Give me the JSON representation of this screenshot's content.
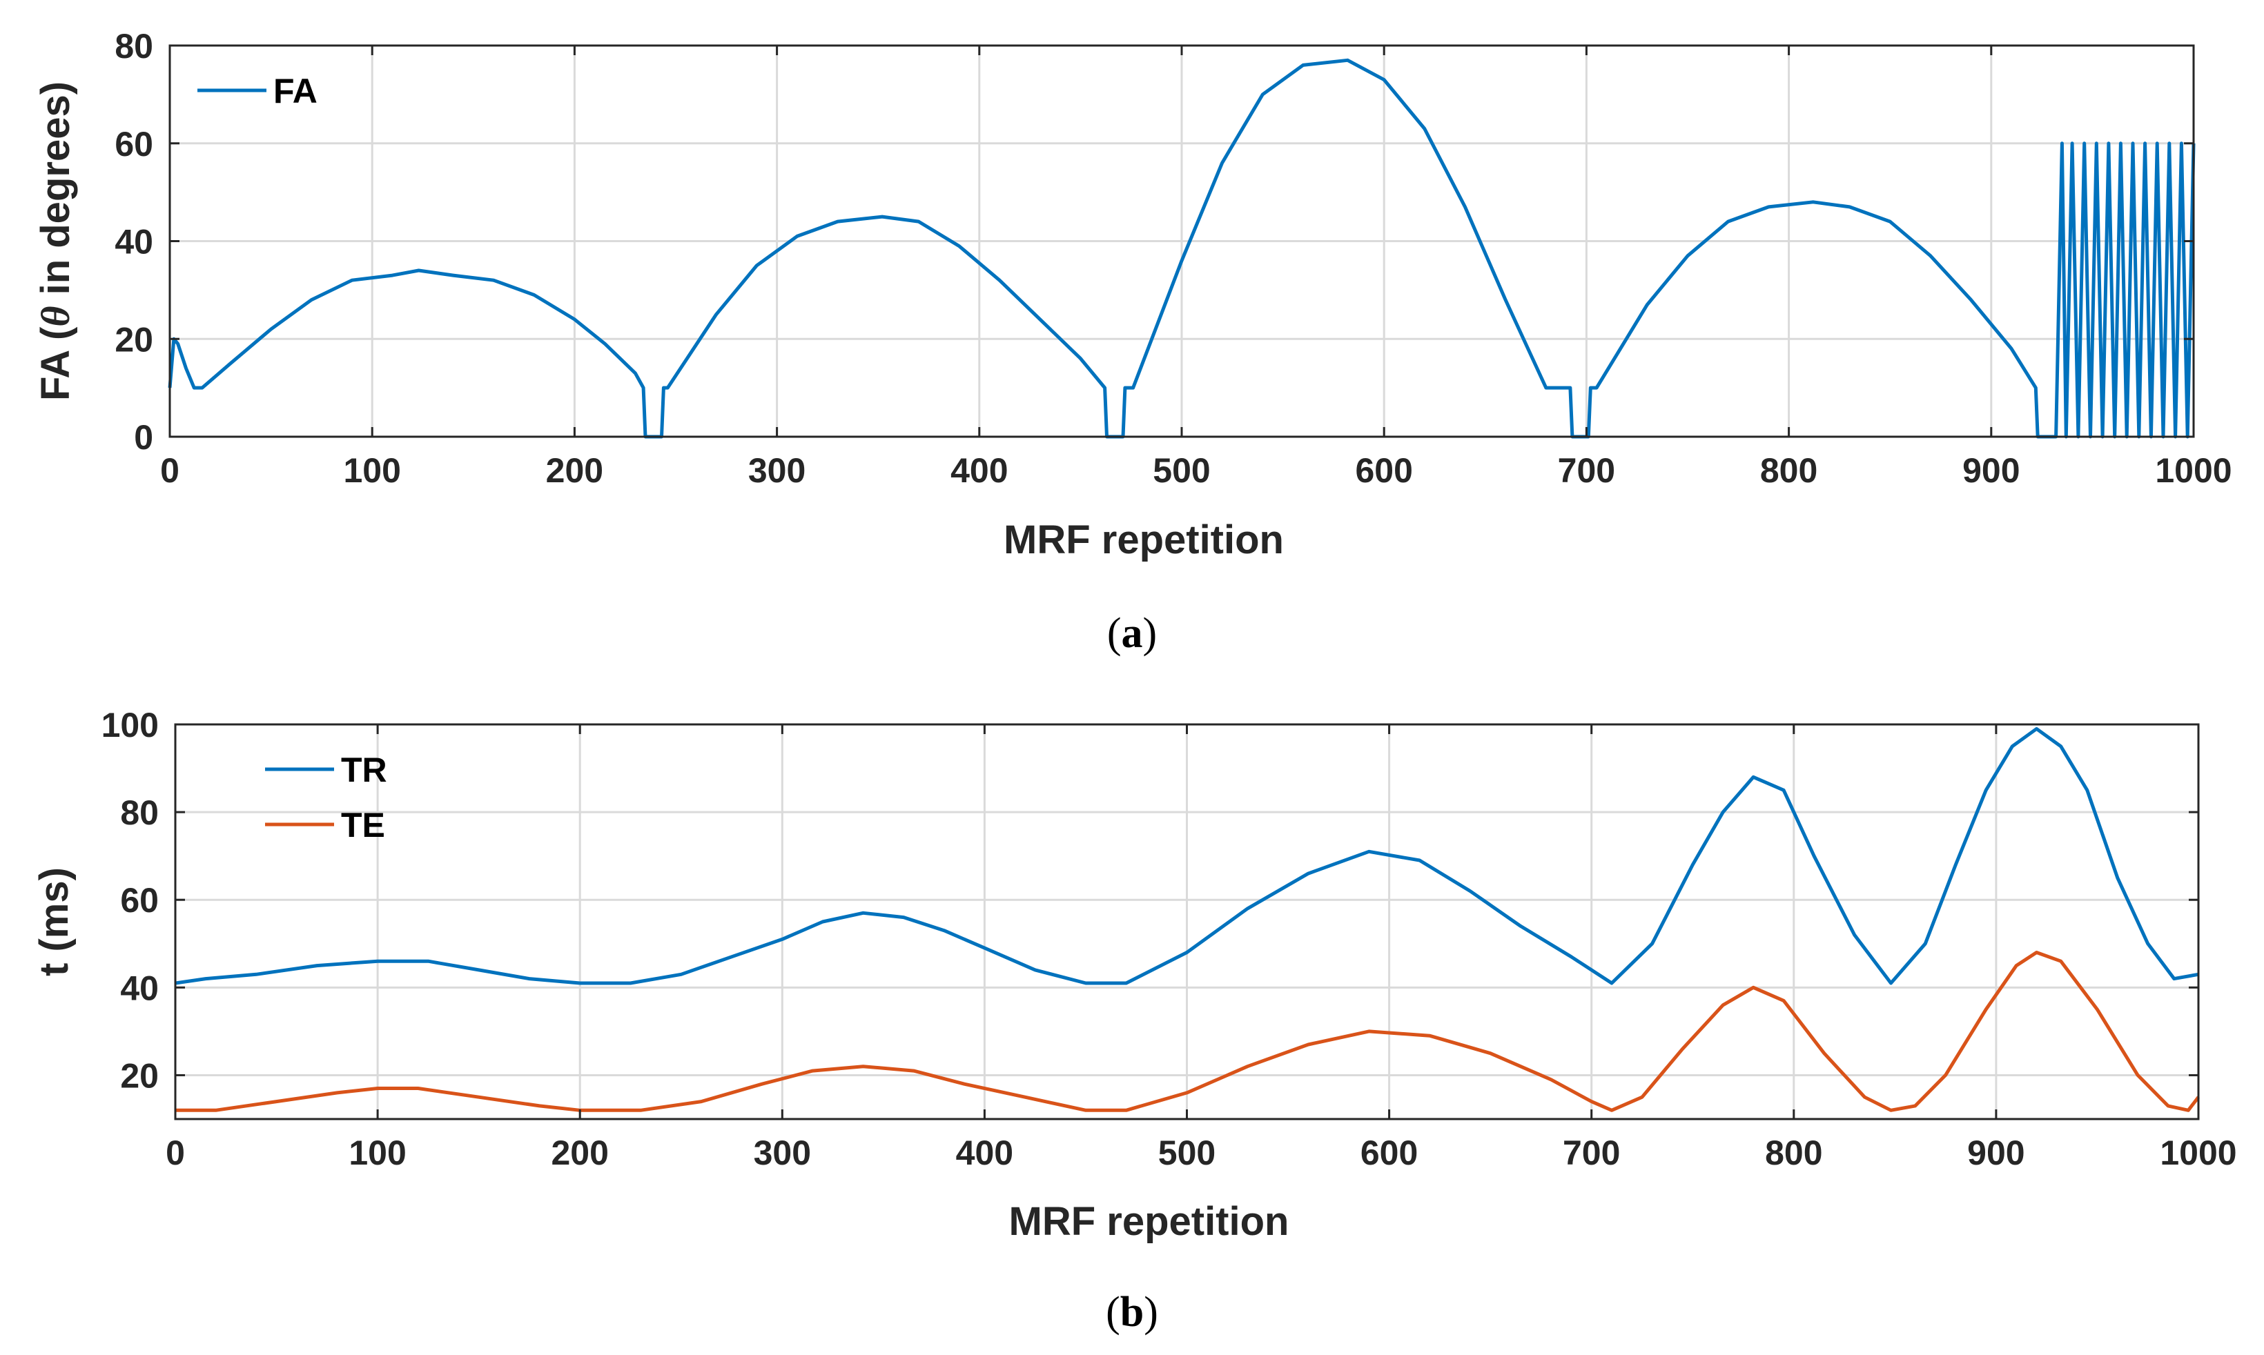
{
  "chart_data": [
    {
      "id": "a",
      "type": "line",
      "caption_letter": "a",
      "xlabel": "MRF repetition",
      "ylabel_prefix": "FA (",
      "ylabel_symbol": "θ",
      "ylabel_suffix": " in degrees)",
      "xlim": [
        0,
        1000
      ],
      "ylim": [
        0,
        80
      ],
      "xticks": [
        0,
        100,
        200,
        300,
        400,
        500,
        600,
        700,
        800,
        900,
        1000
      ],
      "yticks": [
        0,
        20,
        40,
        60,
        80
      ],
      "grid": true,
      "legend_position": "top-left",
      "series": [
        {
          "name": "FA",
          "color": "#0072BD",
          "x": [
            0,
            2,
            4,
            8,
            12,
            16,
            30,
            50,
            70,
            90,
            110,
            123,
            140,
            160,
            180,
            200,
            215,
            230,
            234,
            235,
            243,
            244,
            246,
            270,
            290,
            310,
            330,
            352,
            370,
            390,
            410,
            430,
            450,
            462,
            463,
            471,
            472,
            476,
            500,
            520,
            540,
            560,
            582,
            600,
            620,
            640,
            660,
            680,
            692,
            693,
            701,
            702,
            705,
            730,
            750,
            770,
            790,
            812,
            830,
            850,
            870,
            890,
            910,
            922,
            923,
            932,
            935,
            937,
            940,
            943,
            946,
            949,
            952,
            955,
            958,
            961,
            964,
            967,
            970,
            973,
            976,
            979,
            982,
            985,
            988,
            991,
            994,
            997,
            1000
          ],
          "values": [
            10,
            20,
            19,
            14,
            10,
            10,
            15,
            22,
            28,
            32,
            33,
            34,
            33,
            32,
            29,
            24,
            19,
            13,
            10,
            0,
            0,
            10,
            10,
            25,
            35,
            41,
            44,
            45,
            44,
            39,
            32,
            24,
            16,
            10,
            0,
            0,
            10,
            10,
            36,
            56,
            70,
            76,
            77,
            73,
            63,
            47,
            28,
            10,
            10,
            0,
            0,
            10,
            10,
            27,
            37,
            44,
            47,
            48,
            47,
            44,
            37,
            28,
            18,
            10,
            0,
            0,
            60,
            0,
            60,
            0,
            60,
            0,
            60,
            0,
            60,
            0,
            60,
            0,
            60,
            0,
            60,
            0,
            60,
            0,
            60,
            0,
            60,
            0,
            60
          ]
        }
      ]
    },
    {
      "id": "b",
      "type": "line",
      "caption_letter": "b",
      "xlabel": "MRF repetition",
      "ylabel": "t (ms)",
      "xlim": [
        0,
        1000
      ],
      "ylim": [
        10,
        100
      ],
      "xticks": [
        0,
        100,
        200,
        300,
        400,
        500,
        600,
        700,
        800,
        900,
        1000
      ],
      "yticks": [
        20,
        40,
        60,
        80,
        100
      ],
      "grid": true,
      "legend_position": "top-left",
      "series": [
        {
          "name": "TR",
          "color": "#0072BD",
          "x": [
            0,
            15,
            40,
            70,
            100,
            125,
            150,
            175,
            200,
            225,
            250,
            275,
            300,
            320,
            340,
            360,
            380,
            400,
            425,
            450,
            470,
            500,
            530,
            560,
            590,
            615,
            640,
            665,
            690,
            710,
            730,
            750,
            765,
            780,
            795,
            810,
            830,
            848,
            865,
            880,
            895,
            908,
            920,
            932,
            945,
            960,
            975,
            988,
            1000
          ],
          "values": [
            41,
            42,
            43,
            45,
            46,
            46,
            44,
            42,
            41,
            41,
            43,
            47,
            51,
            55,
            57,
            56,
            53,
            49,
            44,
            41,
            41,
            48,
            58,
            66,
            71,
            69,
            62,
            54,
            47,
            41,
            50,
            68,
            80,
            88,
            85,
            70,
            52,
            41,
            50,
            68,
            85,
            95,
            99,
            95,
            85,
            65,
            50,
            42,
            43
          ]
        },
        {
          "name": "TE",
          "color": "#D95319",
          "x": [
            0,
            20,
            50,
            80,
            100,
            120,
            150,
            180,
            200,
            230,
            260,
            290,
            315,
            340,
            365,
            390,
            420,
            450,
            470,
            500,
            530,
            560,
            590,
            620,
            650,
            680,
            700,
            710,
            725,
            745,
            765,
            780,
            795,
            815,
            835,
            848,
            860,
            875,
            895,
            910,
            920,
            932,
            950,
            970,
            985,
            995,
            1000
          ],
          "values": [
            12,
            12,
            14,
            16,
            17,
            17,
            15,
            13,
            12,
            12,
            14,
            18,
            21,
            22,
            21,
            18,
            15,
            12,
            12,
            16,
            22,
            27,
            30,
            29,
            25,
            19,
            14,
            12,
            15,
            26,
            36,
            40,
            37,
            25,
            15,
            12,
            13,
            20,
            35,
            45,
            48,
            46,
            35,
            20,
            13,
            12,
            15
          ]
        }
      ]
    }
  ]
}
